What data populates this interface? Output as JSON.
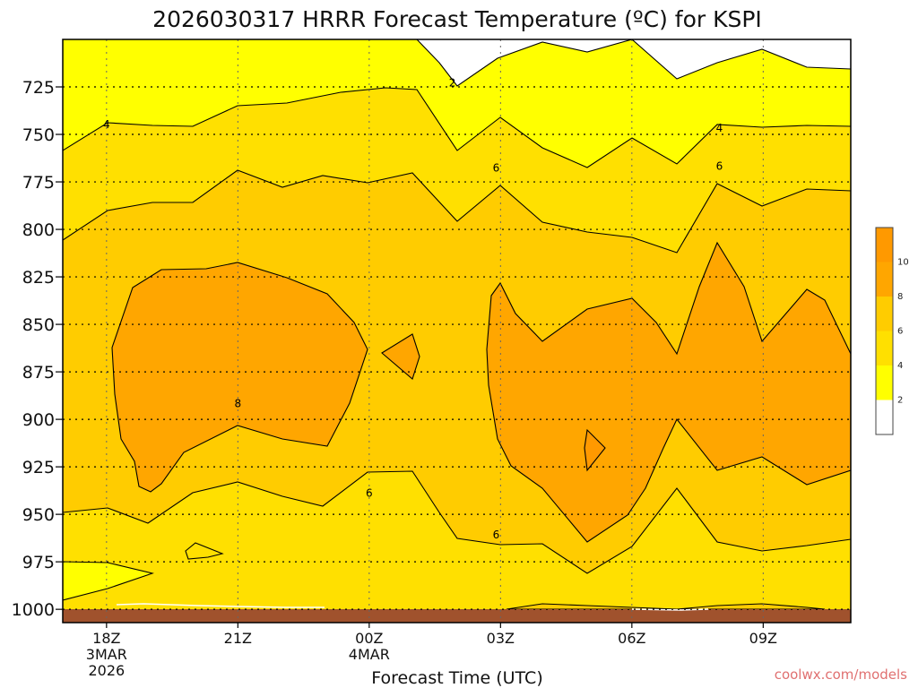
{
  "chart_data": {
    "type": "contour",
    "title": "2026030317 HRRR Forecast Temperature (ºC) for KSPI",
    "xlabel": "Forecast Time (UTC)",
    "ylabel": "",
    "credit": "coolwx.com/models",
    "x_range_hours": [
      -1,
      17
    ],
    "y_range_hPa": [
      700,
      1007
    ],
    "y_ticks": [
      725,
      750,
      775,
      800,
      825,
      850,
      875,
      900,
      925,
      950,
      975,
      1000
    ],
    "y_tick_labels": [
      "725",
      "750",
      "775",
      "800",
      "825",
      "850",
      "875",
      "900",
      "925",
      "950",
      "975",
      "1000"
    ],
    "x_ticks": [
      {
        "hour": 0,
        "label": "18Z",
        "date": "3MAR",
        "year": "2026"
      },
      {
        "hour": 3,
        "label": "21Z",
        "date": "",
        "year": ""
      },
      {
        "hour": 6,
        "label": "00Z",
        "date": "4MAR",
        "year": ""
      },
      {
        "hour": 9,
        "label": "03Z",
        "date": "",
        "year": ""
      },
      {
        "hour": 12,
        "label": "06Z",
        "date": "",
        "year": ""
      },
      {
        "hour": 15,
        "label": "09Z",
        "date": "",
        "year": ""
      }
    ],
    "contour_levels_C": [
      2,
      4,
      6,
      8,
      10
    ],
    "colorbar": [
      {
        "label": "",
        "color": "#ffffff"
      },
      {
        "label": "2",
        "color": "#ffff00"
      },
      {
        "label": "4",
        "color": "#ffe000"
      },
      {
        "label": "6",
        "color": "#ffcc00"
      },
      {
        "label": "8",
        "color": "#ffa600"
      },
      {
        "label": "10",
        "color": "#ff9900"
      }
    ],
    "contour_labels": [
      {
        "value": "2",
        "hour": 7.9,
        "hPa": 723
      },
      {
        "value": "4",
        "hour": 0.0,
        "hPa": 745
      },
      {
        "value": "4",
        "hour": 14.0,
        "hPa": 747
      },
      {
        "value": "6",
        "hour": 8.9,
        "hPa": 768
      },
      {
        "value": "6",
        "hour": 14.0,
        "hPa": 767
      },
      {
        "value": "8",
        "hour": 3.0,
        "hPa": 892
      },
      {
        "value": "6",
        "hour": 6.0,
        "hPa": 939
      },
      {
        "value": "6",
        "hour": 8.9,
        "hPa": 961
      }
    ],
    "surface_band_hPa": [
      1000,
      1007
    ],
    "colors": {
      "surface": "#a0522d"
    }
  }
}
